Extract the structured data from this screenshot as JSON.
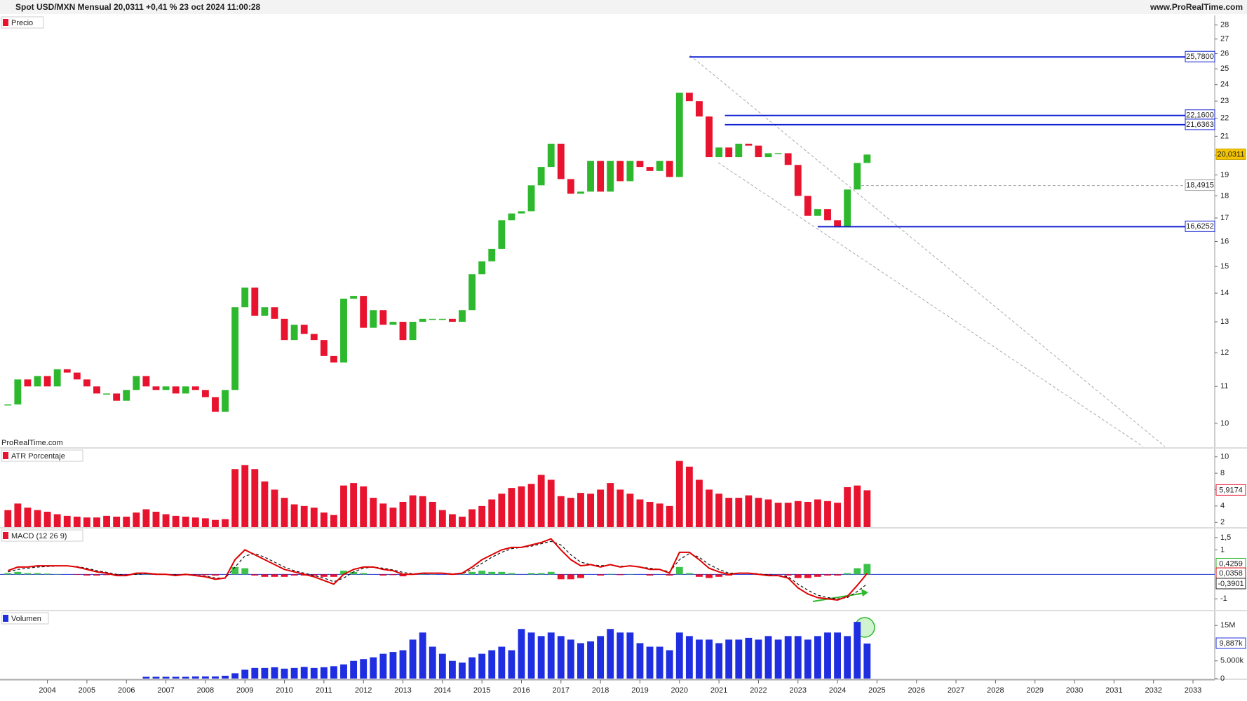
{
  "chart_data": [
    {
      "type": "candlestick",
      "title": "Spot USD/MXN Mensual 20,0311 +0,41 % 23 oct 2024 11:00:28",
      "source": "www.ProRealTime.com",
      "legend": "Precio",
      "watermark": "ProRealTime.com",
      "x": [
        2003,
        2003.25,
        2003.5,
        2003.75,
        2004,
        2004.25,
        2004.5,
        2004.75,
        2005,
        2005.25,
        2005.5,
        2005.75,
        2006,
        2006.25,
        2006.5,
        2006.75,
        2007,
        2007.25,
        2007.5,
        2007.75,
        2008,
        2008.25,
        2008.5,
        2008.75,
        2009,
        2009.25,
        2009.5,
        2009.75,
        2010,
        2010.25,
        2010.5,
        2010.75,
        2011,
        2011.25,
        2011.5,
        2011.75,
        2012,
        2012.25,
        2012.5,
        2012.75,
        2013,
        2013.25,
        2013.5,
        2013.75,
        2014,
        2014.25,
        2014.5,
        2014.75,
        2015,
        2015.25,
        2015.5,
        2015.75,
        2016,
        2016.25,
        2016.5,
        2016.75,
        2017,
        2017.25,
        2017.5,
        2017.75,
        2018,
        2018.25,
        2018.5,
        2018.75,
        2019,
        2019.25,
        2019.5,
        2019.75,
        2020,
        2020.25,
        2020.5,
        2020.75,
        2021,
        2021.25,
        2021.5,
        2021.75,
        2022,
        2022.25,
        2022.5,
        2022.75,
        2023,
        2023.25,
        2023.5,
        2023.75,
        2024,
        2024.25,
        2024.5,
        2024.75
      ],
      "closes": [
        10.5,
        11.2,
        11.0,
        11.3,
        11.0,
        11.5,
        11.4,
        11.2,
        11.0,
        10.8,
        10.8,
        10.6,
        10.9,
        11.3,
        11.0,
        10.9,
        11.0,
        10.8,
        11.0,
        10.9,
        10.7,
        10.3,
        10.9,
        13.5,
        14.2,
        13.2,
        13.5,
        13.1,
        12.4,
        12.9,
        12.6,
        12.4,
        11.9,
        11.7,
        13.8,
        13.9,
        12.8,
        13.4,
        12.9,
        13.0,
        12.4,
        13.0,
        13.1,
        13.1,
        13.1,
        13.0,
        13.4,
        14.7,
        15.2,
        15.7,
        16.9,
        17.2,
        17.3,
        18.5,
        19.4,
        20.6,
        18.8,
        18.1,
        18.2,
        19.7,
        18.2,
        19.7,
        18.7,
        19.7,
        19.4,
        19.2,
        19.7,
        18.9,
        23.5,
        23.0,
        22.1,
        19.9,
        20.4,
        19.9,
        20.6,
        20.5,
        19.9,
        20.1,
        20.1,
        19.5,
        18.0,
        17.1,
        17.4,
        16.9,
        16.6,
        18.3,
        19.6,
        20.0311
      ],
      "up_color": "#2db82d",
      "down_color": "#e8132e",
      "log_scale": true,
      "xlim": [
        2002.8,
        2033.55
      ],
      "xticks": [
        2004,
        2005,
        2006,
        2007,
        2008,
        2009,
        2010,
        2011,
        2012,
        2013,
        2014,
        2015,
        2016,
        2017,
        2018,
        2019,
        2020,
        2021,
        2022,
        2023,
        2024,
        2025,
        2026,
        2027,
        2028,
        2029,
        2030,
        2031,
        2032,
        2033
      ],
      "ylim": [
        9.4,
        28.7
      ],
      "yticks": [
        10,
        11,
        12,
        13,
        14,
        15,
        16,
        17,
        18,
        19,
        20,
        21,
        22,
        23,
        24,
        25,
        26,
        27,
        28
      ],
      "levels": [
        {
          "value": 25.78,
          "label": "25,7800",
          "from": 2020.25,
          "color": "#1020d0",
          "dashed": false
        },
        {
          "value": 22.16,
          "label": "22,1600",
          "from": 2021.15,
          "color": "#1020d0",
          "dashed": false
        },
        {
          "value": 21.6363,
          "label": "21,6363",
          "from": 2021.15,
          "color": "#1020d0",
          "dashed": false
        },
        {
          "value": 18.4915,
          "label": "18,4915",
          "from": 2024.6,
          "color": "#999999",
          "dashed": true
        },
        {
          "value": 16.6252,
          "label": "16,6252",
          "from": 2023.5,
          "color": "#1020d0",
          "dashed": false
        }
      ],
      "tags": [
        {
          "value": 20.0311,
          "label": "20,0311",
          "color": "#222222",
          "bg": "#f5c400"
        }
      ]
    },
    {
      "type": "bar",
      "legend": "ATR Porcentaje",
      "values": [
        3.5,
        4.3,
        3.8,
        3.5,
        3.3,
        3.0,
        2.8,
        2.7,
        2.6,
        2.6,
        2.8,
        2.7,
        2.7,
        3.2,
        3.6,
        3.3,
        3.0,
        2.8,
        2.7,
        2.6,
        2.5,
        2.3,
        2.4,
        8.5,
        9.0,
        8.5,
        7.0,
        6.0,
        5.0,
        4.2,
        4.0,
        3.8,
        3.2,
        2.9,
        6.5,
        6.8,
        6.4,
        5.0,
        4.3,
        3.8,
        4.5,
        5.3,
        5.2,
        4.5,
        3.5,
        3.0,
        2.7,
        3.6,
        4.0,
        4.8,
        5.5,
        6.2,
        6.4,
        6.7,
        7.8,
        7.2,
        5.2,
        5.0,
        5.6,
        5.5,
        6.0,
        6.8,
        6.0,
        5.5,
        4.8,
        4.5,
        4.3,
        4.0,
        9.5,
        8.8,
        7.2,
        6.0,
        5.5,
        5.0,
        5.0,
        5.3,
        5.0,
        4.8,
        4.4,
        4.4,
        4.6,
        4.5,
        4.8,
        4.6,
        4.4,
        6.3,
        6.5,
        5.9174
      ],
      "color": "#e8132e",
      "ylim": [
        1.42,
        11.0
      ],
      "yticks": [
        2,
        4,
        6,
        8,
        10
      ],
      "tags": [
        {
          "value": 5.9174,
          "label": "5,9174",
          "color": "#e8132e",
          "bg": "#ffffff"
        }
      ]
    },
    {
      "type": "macd",
      "legend": "MACD (12 26 9)",
      "macd": [
        0.15,
        0.3,
        0.3,
        0.35,
        0.35,
        0.35,
        0.35,
        0.3,
        0.2,
        0.1,
        0.05,
        -0.05,
        -0.05,
        0.05,
        0.05,
        0.0,
        0.0,
        -0.05,
        0.0,
        -0.05,
        -0.1,
        -0.2,
        -0.15,
        0.6,
        1.0,
        0.8,
        0.6,
        0.4,
        0.2,
        0.1,
        0.0,
        -0.1,
        -0.25,
        -0.4,
        0.0,
        0.2,
        0.3,
        0.3,
        0.2,
        0.15,
        0.0,
        0.0,
        0.05,
        0.05,
        0.05,
        0.0,
        0.05,
        0.3,
        0.6,
        0.8,
        1.0,
        1.1,
        1.1,
        1.2,
        1.3,
        1.45,
        1.0,
        0.6,
        0.35,
        0.4,
        0.3,
        0.4,
        0.3,
        0.35,
        0.3,
        0.2,
        0.2,
        0.05,
        0.9,
        0.9,
        0.6,
        0.25,
        0.1,
        0.0,
        0.05,
        0.05,
        0.0,
        -0.05,
        -0.05,
        -0.15,
        -0.55,
        -0.8,
        -0.95,
        -1.0,
        -1.05,
        -0.9,
        -0.45,
        0.0358
      ],
      "signal": [
        0.1,
        0.2,
        0.25,
        0.3,
        0.32,
        0.34,
        0.35,
        0.32,
        0.25,
        0.15,
        0.08,
        0.0,
        -0.03,
        0.0,
        0.03,
        0.02,
        0.0,
        -0.02,
        -0.02,
        -0.03,
        -0.07,
        -0.15,
        -0.15,
        0.3,
        0.75,
        0.85,
        0.7,
        0.5,
        0.3,
        0.15,
        0.05,
        -0.05,
        -0.15,
        -0.3,
        -0.15,
        0.1,
        0.25,
        0.3,
        0.25,
        0.18,
        0.08,
        0.02,
        0.03,
        0.04,
        0.05,
        0.02,
        0.03,
        0.2,
        0.45,
        0.7,
        0.9,
        1.05,
        1.1,
        1.15,
        1.25,
        1.35,
        1.2,
        0.8,
        0.5,
        0.4,
        0.35,
        0.38,
        0.33,
        0.34,
        0.3,
        0.25,
        0.2,
        0.1,
        0.6,
        0.85,
        0.7,
        0.4,
        0.2,
        0.05,
        0.05,
        0.05,
        0.02,
        -0.02,
        -0.04,
        -0.1,
        -0.4,
        -0.65,
        -0.85,
        -0.95,
        -1.0,
        -0.95,
        -0.7,
        -0.3901
      ],
      "histogram": [
        0.05,
        0.1,
        0.05,
        0.05,
        0.03,
        0.01,
        0,
        -0.02,
        -0.05,
        -0.05,
        -0.03,
        -0.05,
        -0.02,
        0.05,
        0.02,
        -0.02,
        0,
        -0.03,
        0.02,
        -0.02,
        -0.03,
        -0.05,
        0,
        0.3,
        0.25,
        -0.05,
        -0.1,
        -0.1,
        -0.1,
        -0.05,
        -0.05,
        -0.05,
        -0.1,
        -0.1,
        0.15,
        0.1,
        0.05,
        0,
        -0.05,
        -0.03,
        -0.08,
        -0.02,
        0.02,
        0.01,
        0,
        -0.02,
        0.02,
        0.1,
        0.15,
        0.1,
        0.1,
        0.05,
        0,
        0.05,
        0.05,
        0.1,
        -0.2,
        -0.2,
        -0.15,
        0,
        -0.05,
        0.02,
        -0.03,
        0.01,
        0,
        -0.05,
        0,
        -0.05,
        0.3,
        0.05,
        -0.1,
        -0.15,
        -0.1,
        -0.05,
        0,
        0,
        -0.02,
        -0.03,
        -0.01,
        -0.05,
        -0.15,
        -0.15,
        -0.1,
        -0.05,
        -0.05,
        0.05,
        0.25,
        0.4259
      ],
      "macd_color": "#e00000",
      "signal_color": "#111111",
      "up_color": "#3cc24a",
      "down_color": "#e8132e",
      "zero_color": "#2030d0",
      "ylim": [
        -1.45,
        1.87
      ],
      "yticks": [
        -1,
        {
          "value": 1,
          "label": "1"
        },
        {
          "value": 1.5,
          "label": "1,5"
        }
      ],
      "tags": [
        {
          "value": 0.4259,
          "label": "0,4259",
          "color": "#2db82d",
          "bg": "#ffffff"
        },
        {
          "value": 0.0358,
          "label": "0,0358",
          "color": "#e00000",
          "bg": "#ffffff"
        },
        {
          "value": -0.3901,
          "label": "-0,3901",
          "color": "#222222",
          "bg": "#ffffff"
        }
      ]
    },
    {
      "type": "bar",
      "legend": "Volumen",
      "values": [
        0,
        0,
        0,
        0,
        0,
        0,
        0,
        0,
        0,
        0,
        0,
        0,
        0,
        0,
        0.5,
        0.5,
        0.5,
        0.5,
        0.5,
        0.6,
        0.6,
        0.6,
        0.8,
        1.5,
        2.5,
        3,
        3,
        3.2,
        2.8,
        3,
        3.3,
        3,
        3.2,
        3.5,
        4,
        5,
        5.5,
        6,
        7,
        7.5,
        8,
        11,
        13,
        9,
        7,
        5,
        4.5,
        6,
        7,
        8,
        9,
        8,
        14,
        13,
        12,
        13,
        12,
        11,
        10,
        10.5,
        12,
        14,
        13,
        13,
        10,
        9,
        9,
        8,
        13,
        12,
        11,
        11,
        10,
        11,
        11,
        11.5,
        11,
        12,
        11,
        12,
        12,
        11,
        12,
        13,
        13,
        12,
        16,
        9.887
      ],
      "color": "#1f2ee0",
      "ylim": [
        0,
        19.0
      ],
      "yticks": [
        0,
        {
          "value": 5,
          "label": "5.000k"
        },
        {
          "value": 15,
          "label": "15M"
        }
      ],
      "tags": [
        {
          "value": 9.887,
          "label": "9,887k",
          "color": "#1f2ee0",
          "bg": "#ffffff"
        }
      ]
    }
  ]
}
